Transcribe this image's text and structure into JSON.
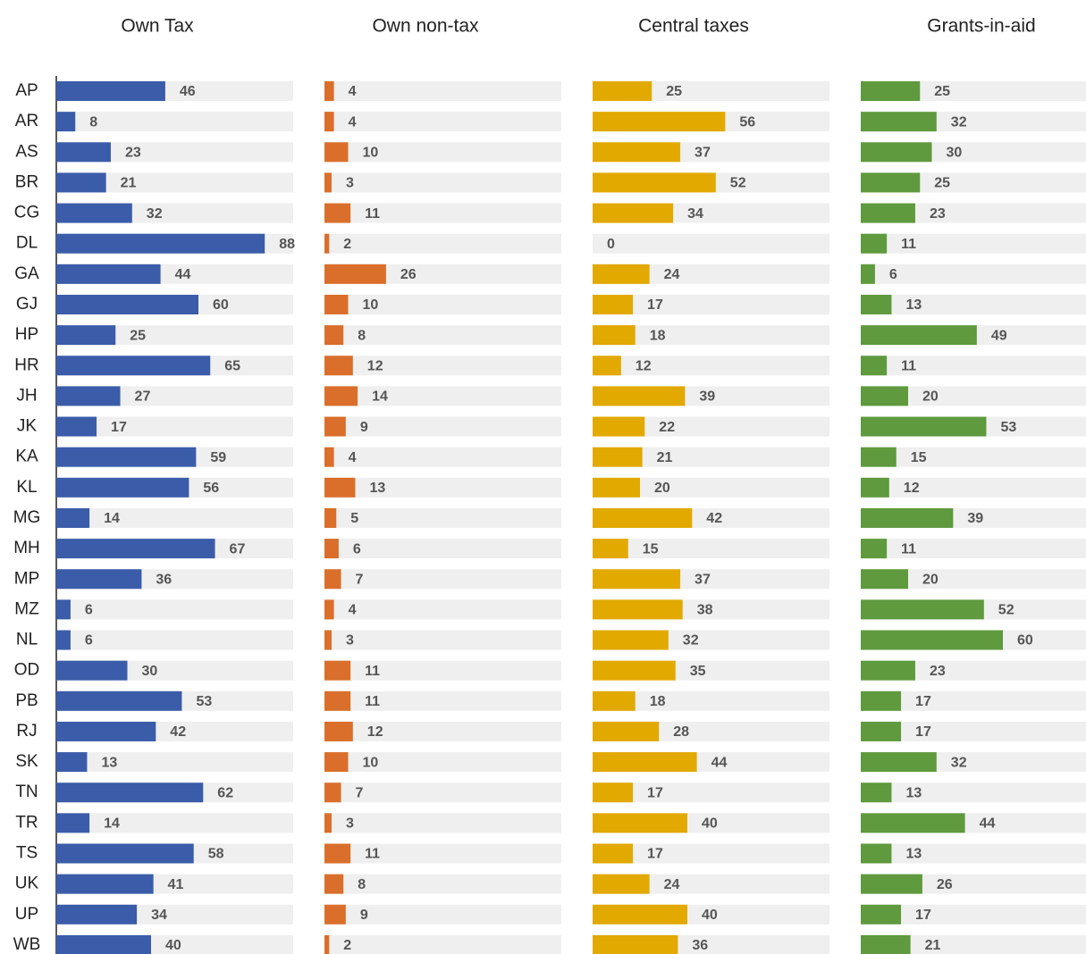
{
  "chart_data": {
    "type": "bar",
    "categories": [
      "AP",
      "AR",
      "AS",
      "BR",
      "CG",
      "DL",
      "GA",
      "GJ",
      "HP",
      "HR",
      "JH",
      "JK",
      "KA",
      "KL",
      "MG",
      "MH",
      "MP",
      "MZ",
      "NL",
      "OD",
      "PB",
      "RJ",
      "SK",
      "TN",
      "TR",
      "TS",
      "UK",
      "UP",
      "WB"
    ],
    "xlim": [
      0,
      100
    ],
    "series": [
      {
        "name": "Own Tax",
        "color": "#3b5ca9",
        "values": [
          46,
          8,
          23,
          21,
          32,
          88,
          44,
          60,
          25,
          65,
          27,
          17,
          59,
          56,
          14,
          67,
          36,
          6,
          6,
          30,
          53,
          42,
          13,
          62,
          14,
          58,
          41,
          34,
          40
        ]
      },
      {
        "name": "Own non-tax",
        "color": "#d96f2b",
        "values": [
          4,
          4,
          10,
          3,
          11,
          2,
          26,
          10,
          8,
          12,
          14,
          9,
          4,
          13,
          5,
          6,
          7,
          4,
          3,
          11,
          11,
          12,
          10,
          7,
          3,
          11,
          8,
          9,
          2
        ]
      },
      {
        "name": "Central taxes",
        "color": "#e2a900",
        "values": [
          25,
          56,
          37,
          52,
          34,
          0,
          24,
          17,
          18,
          12,
          39,
          22,
          21,
          20,
          42,
          15,
          37,
          38,
          32,
          35,
          18,
          28,
          44,
          17,
          40,
          17,
          24,
          40,
          36
        ]
      },
      {
        "name": "Grants-in-aid",
        "color": "#5f9a3e",
        "values": [
          25,
          32,
          30,
          25,
          23,
          11,
          6,
          13,
          49,
          11,
          20,
          53,
          15,
          12,
          39,
          11,
          20,
          52,
          60,
          23,
          17,
          17,
          32,
          13,
          44,
          13,
          26,
          17,
          21
        ]
      }
    ]
  }
}
